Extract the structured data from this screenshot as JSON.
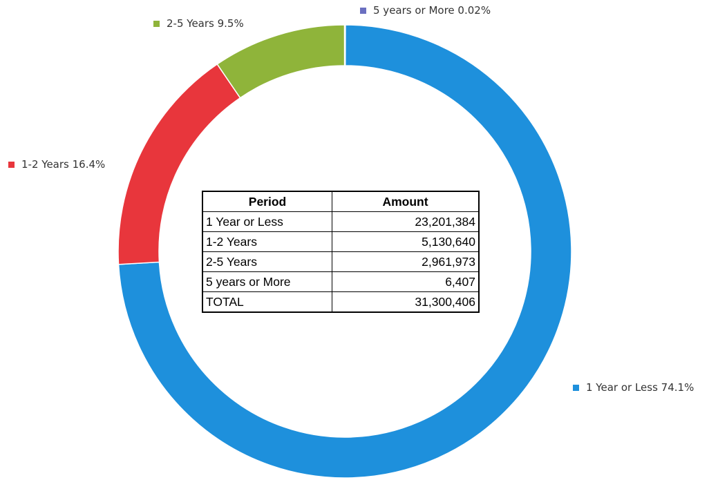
{
  "chart_data": {
    "type": "pie",
    "style": "donut",
    "labels": [
      "1 Year or Less 74.1%",
      "1-2 Years 16.4%",
      "2-5 Years 9.5%",
      "5 years or More 0.02%"
    ],
    "categories": [
      "1 Year or Less",
      "1-2 Years",
      "2-5 Years",
      "5 years or More"
    ],
    "values": [
      74.1,
      16.4,
      9.5,
      0.02
    ],
    "colors": [
      "#1e90dc",
      "#e8363c",
      "#8fb43a",
      "#6a6fc0"
    ],
    "legend": "labels next to slices"
  },
  "table": {
    "headers": {
      "period": "Period",
      "amount": "Amount"
    },
    "rows": [
      {
        "period": "1 Year or Less",
        "amount": "23,201,384"
      },
      {
        "period": "1-2 Years",
        "amount": "5,130,640"
      },
      {
        "period": "2-5 Years",
        "amount": "2,961,973"
      },
      {
        "period": "5 years or More",
        "amount": "6,407"
      },
      {
        "period": "TOTAL",
        "amount": "31,300,406"
      }
    ]
  }
}
